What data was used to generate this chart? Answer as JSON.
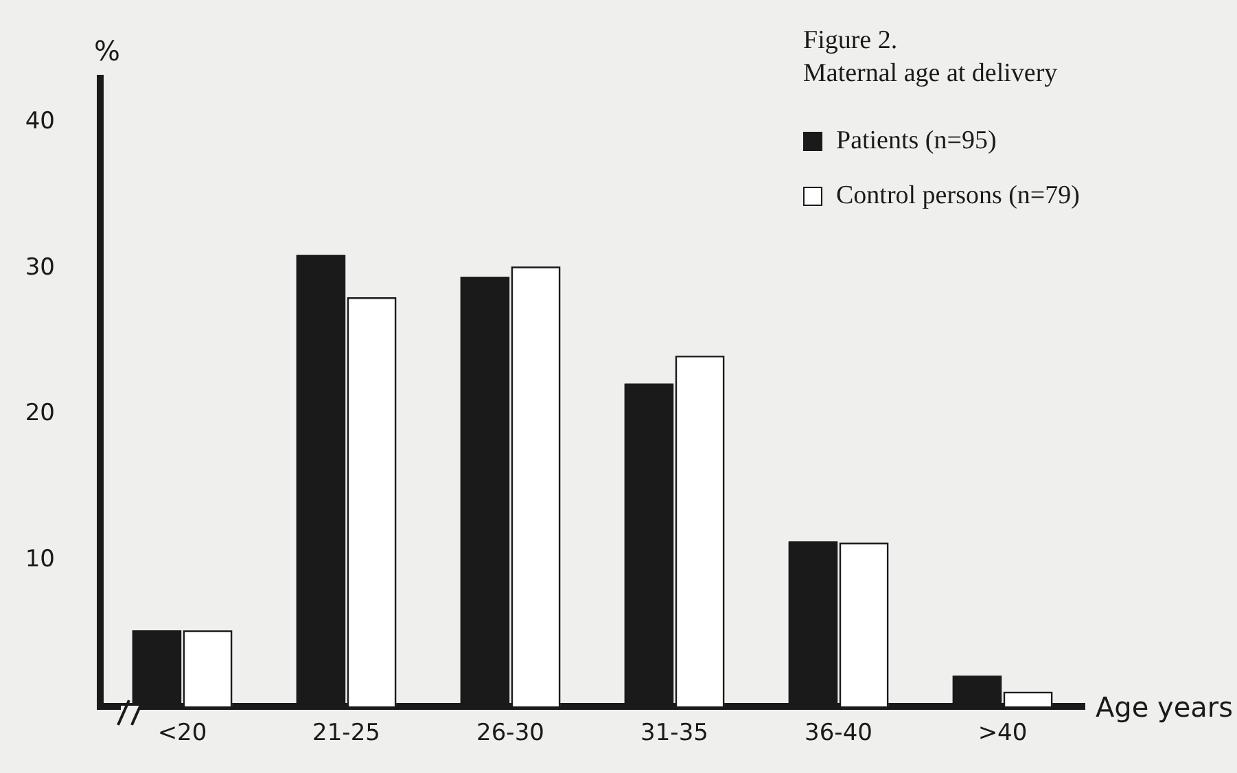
{
  "chart_data": {
    "type": "bar",
    "title": "Figure 2.",
    "subtitle": "Maternal age at delivery",
    "xlabel": "Age years",
    "ylabel": "%",
    "categories": [
      "<20",
      "21-25",
      "26-30",
      "31-35",
      "36-40",
      ">40"
    ],
    "series": [
      {
        "name": "Patients (n=95)",
        "color": "#1a1a1a",
        "values": [
          5.2,
          30.9,
          29.4,
          22.1,
          11.3,
          2.1
        ]
      },
      {
        "name": "Control persons (n=79)",
        "color": "#ffffff",
        "values": [
          5.2,
          28.0,
          30.1,
          24.0,
          11.2,
          1.0
        ]
      }
    ],
    "ylim": [
      0,
      43
    ],
    "yticks": [
      10,
      20,
      30,
      40
    ],
    "grid": false,
    "legend": "top right"
  }
}
